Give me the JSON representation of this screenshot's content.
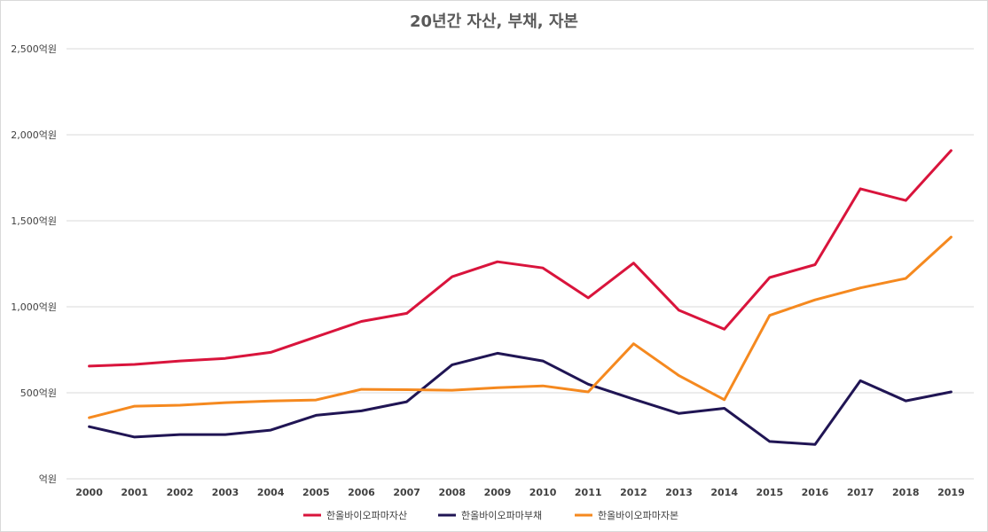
{
  "chart_data": {
    "type": "line",
    "title": "20년간 자산, 부채, 자본",
    "x": [
      "2000",
      "2001",
      "2002",
      "2003",
      "2004",
      "2005",
      "2006",
      "2007",
      "2008",
      "2009",
      "2010",
      "2011",
      "2012",
      "2013",
      "2014",
      "2015",
      "2016",
      "2017",
      "2018",
      "2019"
    ],
    "ylim": [
      0,
      2500
    ],
    "yticks": [
      "억원",
      "500억원",
      "1,000억원",
      "1,500억원",
      "2,000억원",
      "2,500억원"
    ],
    "ytick_values": [
      0,
      500,
      1000,
      1500,
      2000,
      2500
    ],
    "grid": true,
    "legend_position": "bottom",
    "series": [
      {
        "name": "한올바이오파마자산",
        "color": "#d9143c",
        "values": [
          655,
          665,
          685,
          700,
          735,
          825,
          915,
          962,
          1175,
          1262,
          1226,
          1052,
          1254,
          980,
          870,
          1170,
          1245,
          1686,
          1618,
          1908
        ]
      },
      {
        "name": "한올바이오파마부채",
        "color": "#201554",
        "values": [
          303,
          243,
          257,
          257,
          283,
          369,
          395,
          448,
          663,
          730,
          685,
          550,
          463,
          380,
          410,
          217,
          200,
          570,
          453,
          505
        ]
      },
      {
        "name": "한올바이오파마자본",
        "color": "#f5891f",
        "values": [
          355,
          422,
          428,
          443,
          452,
          458,
          520,
          518,
          515,
          530,
          540,
          505,
          785,
          600,
          460,
          950,
          1040,
          1110,
          1165,
          1405
        ]
      }
    ]
  }
}
